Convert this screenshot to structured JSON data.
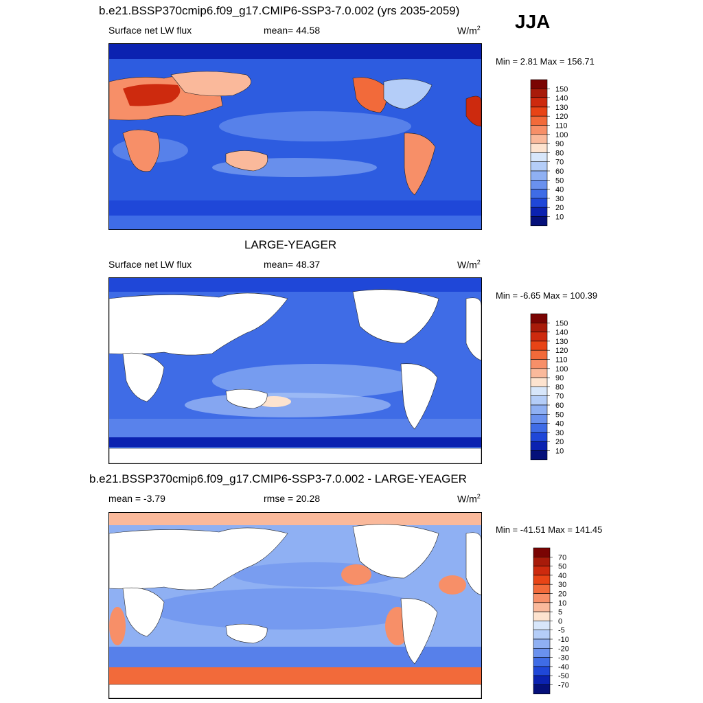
{
  "season": "JJA",
  "panels": [
    {
      "title": "b.e21.BSSP370cmip6.f09_g17.CMIP6-SSP3-7.0.002 (yrs 2035-2059)",
      "left_label": "Surface net LW flux",
      "center_label": "mean=  44.58",
      "units": "W/m",
      "units_sup": "2",
      "minmax": "Min =   2.81 Max = 156.71"
    },
    {
      "title": "LARGE-YEAGER",
      "left_label": "Surface net LW flux",
      "center_label": "mean=  48.37",
      "units": "W/m",
      "units_sup": "2",
      "minmax": "Min =  -6.65 Max = 100.39"
    },
    {
      "title": "b.e21.BSSP370cmip6.f09_g17.CMIP6-SSP3-7.0.002 - LARGE-YEAGER",
      "left_label": "mean =  -3.79",
      "center_label": "rmse =  20.28",
      "units": "W/m",
      "units_sup": "2",
      "minmax": "Min = -41.51 Max = 141.45"
    }
  ],
  "chart_data": [
    {
      "type": "heatmap",
      "title": "b.e21.BSSP370cmip6.f09_g17.CMIP6-SSP3-7.0.002 (yrs 2035-2059)",
      "variable": "Surface net LW flux",
      "mean": 44.58,
      "min": 2.81,
      "max": 156.71,
      "colorbar": {
        "levels": [
          "150",
          "140",
          "130",
          "120",
          "110",
          "100",
          "90",
          "80",
          "70",
          "60",
          "50",
          "40",
          "30",
          "20",
          "10"
        ],
        "colors": [
          "#7a0403",
          "#a81b0a",
          "#cd2a0e",
          "#e84416",
          "#f26a3a",
          "#f78f68",
          "#fab99b",
          "#fde3cf",
          "#d7e6fa",
          "#b4cdf8",
          "#8fb0f3",
          "#6a91ee",
          "#3f6ce6",
          "#1f47d8",
          "#0b22b0",
          "#05107a"
        ]
      }
    },
    {
      "type": "heatmap",
      "title": "LARGE-YEAGER",
      "variable": "Surface net LW flux",
      "mean": 48.37,
      "min": -6.65,
      "max": 100.39,
      "colorbar": {
        "levels": [
          "150",
          "140",
          "130",
          "120",
          "110",
          "100",
          "90",
          "80",
          "70",
          "60",
          "50",
          "40",
          "30",
          "20",
          "10"
        ],
        "colors": [
          "#7a0403",
          "#a81b0a",
          "#cd2a0e",
          "#e84416",
          "#f26a3a",
          "#f78f68",
          "#fab99b",
          "#fde3cf",
          "#d7e6fa",
          "#b4cdf8",
          "#8fb0f3",
          "#6a91ee",
          "#3f6ce6",
          "#1f47d8",
          "#0b22b0",
          "#05107a"
        ]
      }
    },
    {
      "type": "heatmap",
      "title": "b.e21.BSSP370cmip6.f09_g17.CMIP6-SSP3-7.0.002 - LARGE-YEAGER",
      "mean": -3.79,
      "rmse": 20.28,
      "min": -41.51,
      "max": 141.45,
      "colorbar": {
        "levels": [
          "70",
          "50",
          "40",
          "30",
          "20",
          "10",
          "5",
          "0",
          "-5",
          "-10",
          "-20",
          "-30",
          "-40",
          "-50",
          "-70"
        ],
        "colors": [
          "#7a0403",
          "#a81b0a",
          "#cd2a0e",
          "#e84416",
          "#f26a3a",
          "#f78f68",
          "#fab99b",
          "#fde3cf",
          "#d7e6fa",
          "#b4cdf8",
          "#8fb0f3",
          "#6a91ee",
          "#3f6ce6",
          "#1f47d8",
          "#0b22b0",
          "#05107a"
        ]
      }
    }
  ]
}
